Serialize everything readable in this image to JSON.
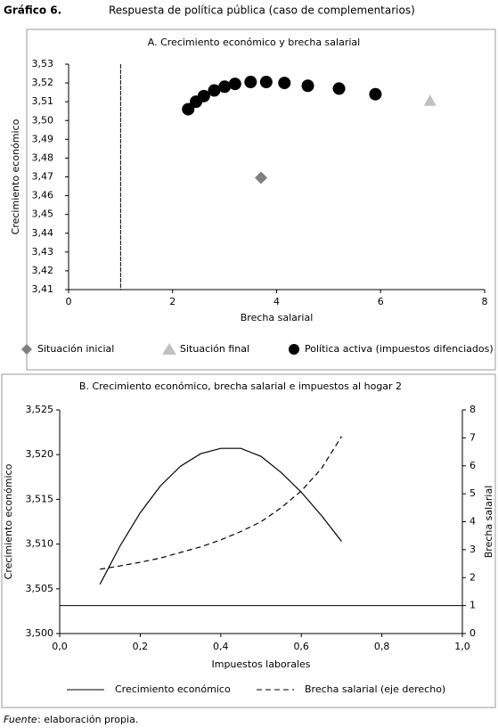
{
  "header": {
    "label": "Gráfico 6.",
    "title": "Respuesta de política pública (caso de complementarios)"
  },
  "chart_data": [
    {
      "type": "scatter",
      "title": "A. Crecimiento económico y brecha salarial",
      "x_label": "Brecha salarial",
      "y_label": "Crecimiento económico",
      "xlim": [
        0,
        8
      ],
      "xticks": [
        0,
        2,
        4,
        6,
        8
      ],
      "ylim": [
        3.41,
        3.53
      ],
      "yticks": [
        {
          "value": 3.41,
          "label": "3,41"
        },
        {
          "value": 3.42,
          "label": "3,42"
        },
        {
          "value": 3.43,
          "label": "3,43"
        },
        {
          "value": 3.44,
          "label": "3,44"
        },
        {
          "value": 3.45,
          "label": "3,45"
        },
        {
          "value": 3.46,
          "label": "3,46"
        },
        {
          "value": 3.47,
          "label": "3,47"
        },
        {
          "value": 3.48,
          "label": "3,48"
        },
        {
          "value": 3.49,
          "label": "3,49"
        },
        {
          "value": 3.5,
          "label": "3,50"
        },
        {
          "value": 3.51,
          "label": "3,51"
        },
        {
          "value": 3.52,
          "label": "3,52"
        },
        {
          "value": 3.53,
          "label": "3,53"
        }
      ],
      "reference_line": {
        "axis": "x",
        "value": 1,
        "color": "#000000"
      },
      "series": [
        {
          "name": "Situación inicial",
          "color": "#808080",
          "marker": "diamond",
          "x": [
            3.7
          ],
          "values": [
            3.4695
          ]
        },
        {
          "name": "Situación final",
          "color": "#c0c0c0",
          "marker": "triangle",
          "x": [
            6.95
          ],
          "values": [
            3.5105
          ]
        },
        {
          "name": "Política activa (impuestos difenciados)",
          "color": "#000000",
          "marker": "circle",
          "x": [
            2.3,
            2.45,
            2.6,
            2.8,
            3.0,
            3.2,
            3.5,
            3.8,
            4.15,
            4.6,
            5.2,
            5.9
          ],
          "values": [
            3.506,
            3.51,
            3.513,
            3.516,
            3.518,
            3.5195,
            3.5205,
            3.5205,
            3.52,
            3.5185,
            3.517,
            3.514
          ]
        }
      ]
    },
    {
      "type": "line",
      "title": "B. Crecimiento económico, brecha salarial e impuestos al hogar 2",
      "x_label": "Impuestos laborales",
      "y_label": "Crecimiento económico",
      "y2_label": "Brecha salarial",
      "xlim": [
        0,
        1
      ],
      "xticks": [
        {
          "value": 0,
          "label": "0,0"
        },
        {
          "value": 0.2,
          "label": "0,2"
        },
        {
          "value": 0.4,
          "label": "0,4"
        },
        {
          "value": 0.6,
          "label": "0,6"
        },
        {
          "value": 0.8,
          "label": "0,8"
        },
        {
          "value": 1,
          "label": "1,0"
        }
      ],
      "ylim": [
        3.5,
        3.525
      ],
      "yticks": [
        {
          "value": 3.5,
          "label": "3,500"
        },
        {
          "value": 3.505,
          "label": "3,505"
        },
        {
          "value": 3.51,
          "label": "3,510"
        },
        {
          "value": 3.515,
          "label": "3,515"
        },
        {
          "value": 3.52,
          "label": "3,520"
        },
        {
          "value": 3.525,
          "label": "3,525"
        }
      ],
      "y2lim": [
        0,
        8
      ],
      "y2ticks": [
        0,
        1,
        2,
        3,
        4,
        5,
        6,
        7,
        8
      ],
      "reference_line": {
        "axis": "y2",
        "value": 1,
        "color": "#000000"
      },
      "x": [
        0.1,
        0.15,
        0.2,
        0.25,
        0.3,
        0.35,
        0.4,
        0.45,
        0.5,
        0.55,
        0.6,
        0.65,
        0.7
      ],
      "series": [
        {
          "name": "Crecimiento económico",
          "color": "#000000",
          "dashed": false,
          "values": [
            3.5055,
            3.5098,
            3.5135,
            3.5165,
            3.5187,
            3.5201,
            3.5207,
            3.5207,
            3.5198,
            3.518,
            3.5158,
            3.5132,
            3.5103
          ]
        },
        {
          "name": "Brecha salarial (eje derecho)",
          "color": "#000000",
          "dashed": true,
          "axis": "y2",
          "values": [
            2.3,
            2.42,
            2.55,
            2.7,
            2.9,
            3.1,
            3.35,
            3.65,
            4.0,
            4.5,
            5.1,
            5.9,
            7.05
          ]
        }
      ]
    }
  ],
  "source": {
    "label": "Fuente",
    "text": ": elaboración propia."
  }
}
